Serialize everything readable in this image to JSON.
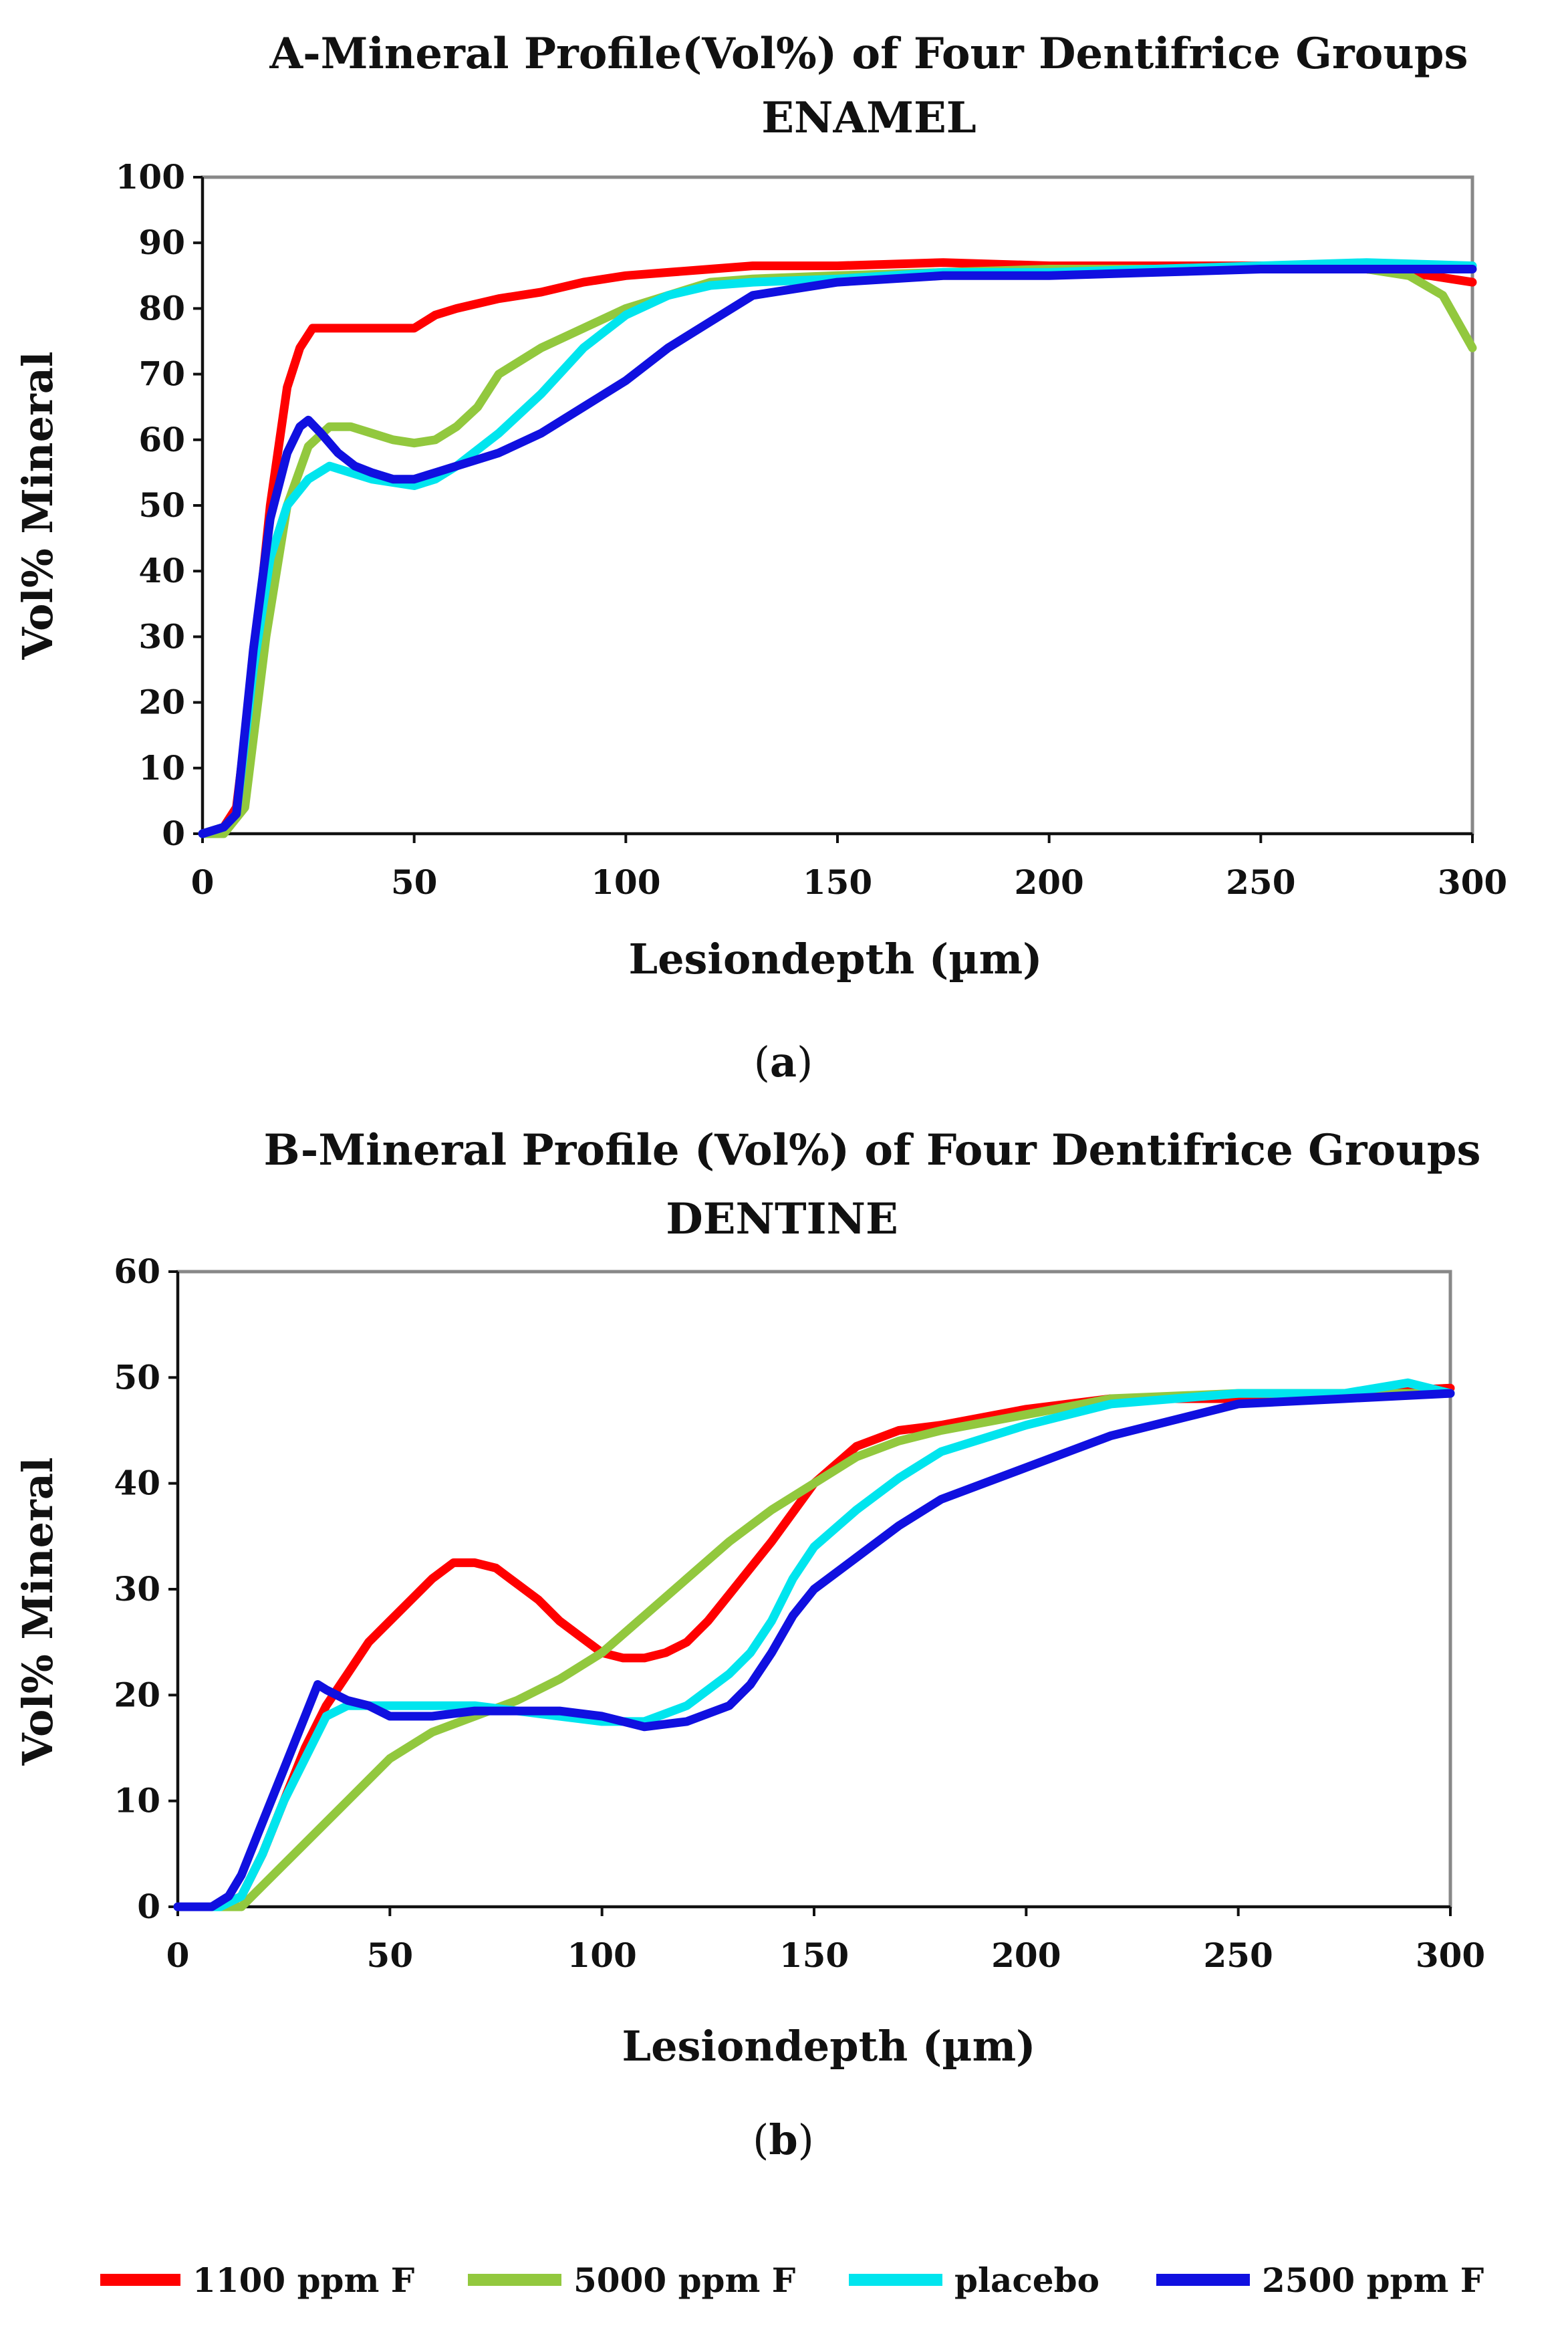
{
  "chart_data": [
    {
      "type": "line",
      "title": "A-Mineral Profile(Vol%) of Four Dentifrice Groups",
      "subtitle": "ENAMEL",
      "xlabel": "Lesiondepth (µm)",
      "ylabel": "Vol% Mineral",
      "caption_open": "(",
      "caption_letter": "a",
      "caption_close": ")",
      "xlim": [
        0,
        300
      ],
      "ylim": [
        0,
        100
      ],
      "xticks": [
        0,
        50,
        100,
        150,
        200,
        250,
        300
      ],
      "yticks": [
        0,
        10,
        20,
        30,
        40,
        50,
        60,
        70,
        80,
        90,
        100
      ],
      "series": [
        {
          "name": "1100 ppm F",
          "color": "#ff0000",
          "x": [
            0,
            5,
            8,
            12,
            16,
            20,
            23,
            26,
            30,
            40,
            50,
            55,
            60,
            70,
            80,
            90,
            100,
            110,
            120,
            130,
            150,
            175,
            200,
            225,
            250,
            275,
            290,
            300
          ],
          "y": [
            0,
            1,
            4,
            25,
            50,
            68,
            74,
            77,
            77,
            77,
            77,
            79,
            80,
            81.5,
            82.5,
            84,
            85,
            85.5,
            86,
            86.5,
            86.5,
            87,
            86.5,
            86.5,
            86.5,
            86,
            85,
            84
          ]
        },
        {
          "name": "5000 ppm F",
          "color": "#92c83e",
          "x": [
            0,
            5,
            10,
            15,
            20,
            25,
            30,
            35,
            40,
            45,
            50,
            55,
            60,
            65,
            70,
            80,
            90,
            100,
            110,
            120,
            130,
            150,
            175,
            200,
            225,
            250,
            275,
            285,
            293,
            300
          ],
          "y": [
            0,
            0,
            4,
            30,
            50,
            59,
            62,
            62,
            61,
            60,
            59.5,
            60,
            62,
            65,
            70,
            74,
            77,
            80,
            82,
            84,
            84.5,
            85,
            85.5,
            86,
            86,
            86,
            86,
            85,
            82,
            74
          ]
        },
        {
          "name": "placebo",
          "color": "#00e5ee",
          "x": [
            0,
            5,
            8,
            12,
            16,
            20,
            25,
            30,
            35,
            40,
            45,
            50,
            55,
            60,
            70,
            80,
            90,
            100,
            110,
            120,
            130,
            150,
            175,
            200,
            225,
            250,
            275,
            300
          ],
          "y": [
            0,
            1,
            3,
            25,
            42,
            50,
            54,
            56,
            55,
            54,
            53.5,
            53,
            54,
            56,
            61,
            67,
            74,
            79,
            82,
            83.5,
            84,
            84.5,
            85.5,
            85.5,
            86,
            86.5,
            87,
            86.5
          ]
        },
        {
          "name": "2500 ppm F",
          "color": "#1010e0",
          "x": [
            0,
            5,
            8,
            12,
            16,
            20,
            23,
            25,
            28,
            32,
            36,
            40,
            45,
            50,
            55,
            60,
            70,
            80,
            90,
            100,
            110,
            120,
            130,
            150,
            175,
            200,
            225,
            250,
            275,
            300
          ],
          "y": [
            0,
            1,
            3,
            28,
            48,
            58,
            62,
            63,
            61,
            58,
            56,
            55,
            54,
            54,
            55,
            56,
            58,
            61,
            65,
            69,
            74,
            78,
            82,
            84,
            85,
            85,
            85.5,
            86,
            86,
            86
          ]
        }
      ]
    },
    {
      "type": "line",
      "title": "B-Mineral Profile (Vol%) of Four Dentifrice Groups",
      "subtitle": "DENTINE",
      "xlabel": "Lesiondepth (µm)",
      "ylabel": "Vol% Mineral",
      "caption_open": "(",
      "caption_letter": "b",
      "caption_close": ")",
      "xlim": [
        0,
        300
      ],
      "ylim": [
        0,
        60
      ],
      "xticks": [
        0,
        50,
        100,
        150,
        200,
        250,
        300
      ],
      "yticks": [
        0,
        10,
        20,
        30,
        40,
        50,
        60
      ],
      "series": [
        {
          "name": "1100 ppm F",
          "color": "#ff0000",
          "x": [
            0,
            10,
            15,
            20,
            25,
            30,
            35,
            40,
            45,
            50,
            55,
            60,
            65,
            70,
            75,
            80,
            85,
            90,
            95,
            100,
            105,
            110,
            115,
            120,
            125,
            130,
            140,
            150,
            160,
            170,
            180,
            200,
            220,
            250,
            275,
            300
          ],
          "y": [
            0,
            0,
            1,
            5,
            10,
            15,
            19,
            22,
            25,
            27,
            29,
            31,
            32.5,
            32.5,
            32,
            30.5,
            29,
            27,
            25.5,
            24,
            23.5,
            23.5,
            24,
            25,
            27,
            29.5,
            34.5,
            40,
            43.5,
            45,
            45.5,
            47,
            48,
            48,
            48.5,
            49
          ]
        },
        {
          "name": "5000 ppm F",
          "color": "#92c83e",
          "x": [
            0,
            10,
            15,
            20,
            30,
            40,
            50,
            60,
            70,
            80,
            90,
            100,
            110,
            120,
            130,
            140,
            150,
            160,
            170,
            180,
            200,
            220,
            250,
            275,
            300
          ],
          "y": [
            0,
            0,
            0,
            2,
            6,
            10,
            14,
            16.5,
            18,
            19.5,
            21.5,
            24,
            27.5,
            31,
            34.5,
            37.5,
            40,
            42.5,
            44,
            45,
            46.5,
            48,
            48.5,
            48.5,
            48.5
          ]
        },
        {
          "name": "placebo",
          "color": "#00e5ee",
          "x": [
            0,
            10,
            15,
            20,
            25,
            30,
            35,
            40,
            50,
            60,
            70,
            80,
            90,
            100,
            110,
            120,
            130,
            135,
            140,
            145,
            150,
            160,
            170,
            180,
            200,
            220,
            250,
            275,
            290,
            300
          ],
          "y": [
            0,
            0,
            1,
            5,
            10,
            14,
            18,
            19,
            19,
            19,
            19,
            18.5,
            18,
            17.5,
            17.5,
            19,
            22,
            24,
            27,
            31,
            34,
            37.5,
            40.5,
            43,
            45.5,
            47.5,
            48.5,
            48.5,
            49.5,
            48.5
          ]
        },
        {
          "name": "2500 ppm F",
          "color": "#1010e0",
          "x": [
            0,
            8,
            12,
            15,
            20,
            25,
            30,
            33,
            35,
            40,
            45,
            50,
            60,
            70,
            80,
            90,
            100,
            110,
            120,
            130,
            135,
            140,
            145,
            150,
            160,
            170,
            180,
            200,
            220,
            240,
            250,
            275,
            300
          ],
          "y": [
            0,
            0,
            1,
            3,
            8,
            13,
            18,
            21,
            20.5,
            19.5,
            19,
            18,
            18,
            18.5,
            18.5,
            18.5,
            18,
            17,
            17.5,
            19,
            21,
            24,
            27.5,
            30,
            33,
            36,
            38.5,
            41.5,
            44.5,
            46.5,
            47.5,
            48,
            48.5
          ]
        }
      ]
    }
  ],
  "legend": [
    {
      "label": "1100 ppm F",
      "color": "#ff0000"
    },
    {
      "label": "5000 ppm F",
      "color": "#92c83e"
    },
    {
      "label": "placebo",
      "color": "#00e5ee"
    },
    {
      "label": "2500 ppm F",
      "color": "#1010e0"
    }
  ]
}
